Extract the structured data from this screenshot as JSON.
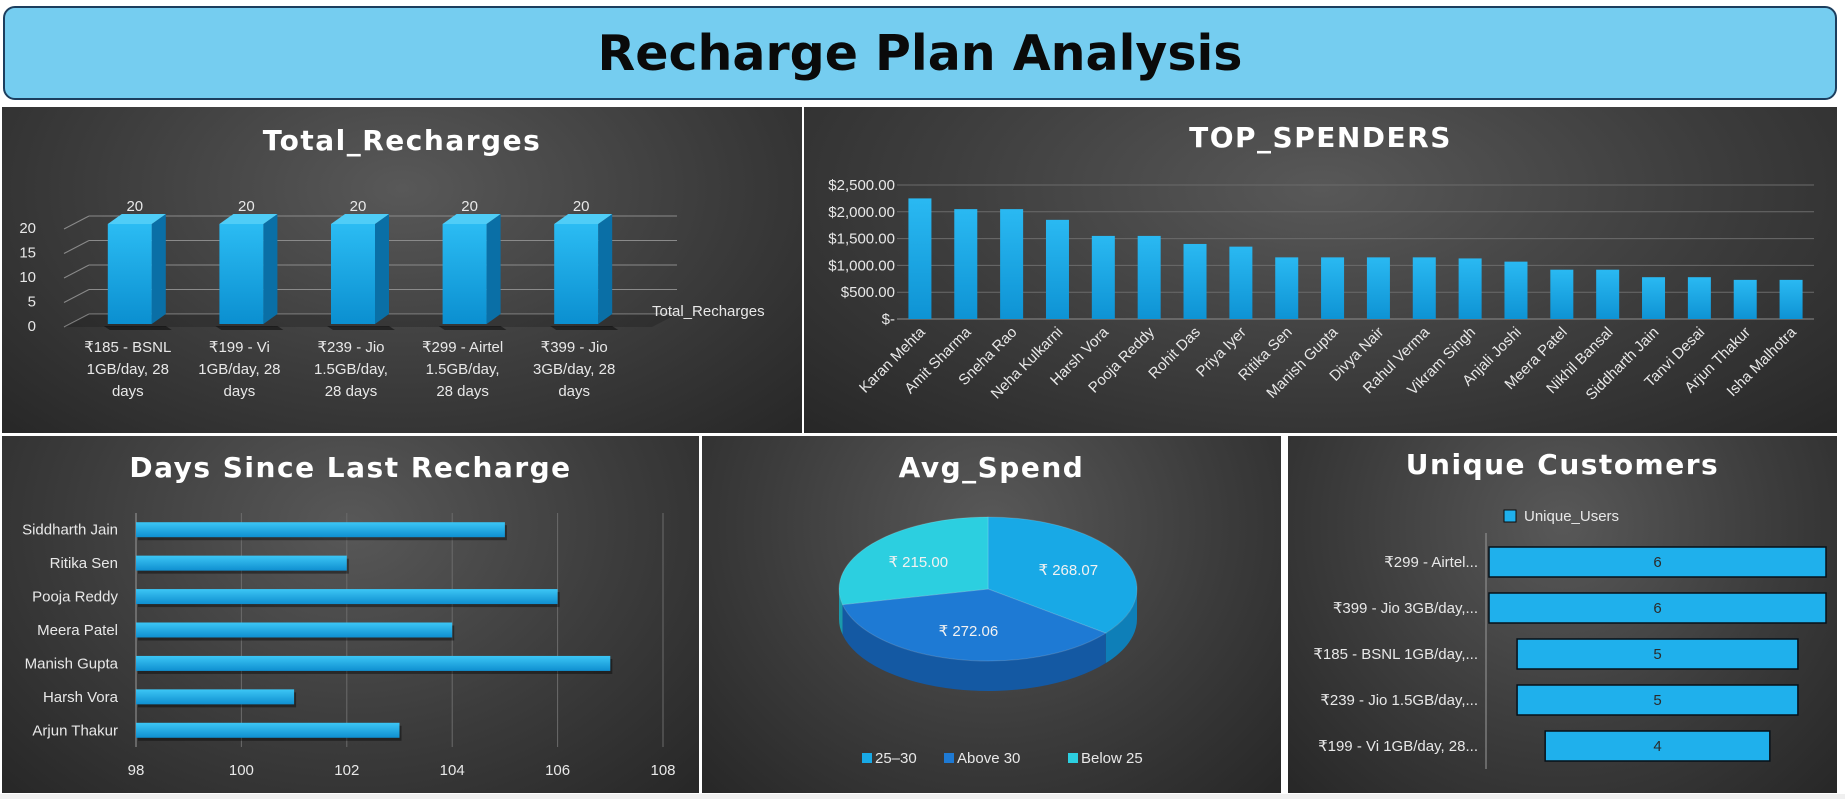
{
  "dashboard": {
    "title": "Recharge Plan Analysis"
  },
  "colors": {
    "bar": "#1fb0ec",
    "bar_dark": "#0a78b0",
    "grid": "#6b6b6b",
    "label": "#e8e8e8",
    "pie_1": "#18a9e6",
    "pie_2": "#1e7ad4",
    "pie_3": "#2ccfe0"
  },
  "chart_data": [
    {
      "type": "bar",
      "title": "Total_Recharges",
      "categories": [
        "₹185 - BSNL 1GB/day, 28 days",
        "₹199 - Vi 1GB/day, 28 days",
        "₹239 - Jio 1.5GB/day, 28 days",
        "₹299 - Airtel 1.5GB/day, 28 days",
        "₹399 - Jio 3GB/day, 28 days"
      ],
      "category_lines": [
        [
          "₹185 - BSNL",
          "1GB/day, 28",
          "days"
        ],
        [
          "₹199 - Vi",
          "1GB/day, 28",
          "days"
        ],
        [
          "₹239 - Jio",
          "1.5GB/day,",
          "28 days"
        ],
        [
          "₹299 - Airtel",
          "1.5GB/day,",
          "28 days"
        ],
        [
          "₹399 - Jio",
          "3GB/day, 28",
          "days"
        ]
      ],
      "series": [
        {
          "name": "Total_Recharges",
          "values": [
            20,
            20,
            20,
            20,
            20
          ]
        }
      ],
      "ylim": [
        0,
        20
      ],
      "yticks": [
        "0",
        "5",
        "10",
        "15",
        "20"
      ],
      "style": "3d-column",
      "legend": "right"
    },
    {
      "type": "bar",
      "title": "TOP_SPENDERS",
      "categories": [
        "Karan Mehta",
        "Amit Sharma",
        "Sneha Rao",
        "Neha Kulkarni",
        "Harsh Vora",
        "Pooja Reddy",
        "Rohit Das",
        "Priya Iyer",
        "Ritika Sen",
        "Manish Gupta",
        "Divya Nair",
        "Rahul Verma",
        "Vikram Singh",
        "Anjali Joshi",
        "Meera Patel",
        "Nikhil Bansal",
        "Siddharth Jain",
        "Tanvi Desai",
        "Arjun Thakur",
        "Isha Malhotra"
      ],
      "values": [
        2250,
        2050,
        2050,
        1850,
        1550,
        1550,
        1400,
        1350,
        1150,
        1150,
        1150,
        1150,
        1130,
        1070,
        920,
        920,
        780,
        780,
        730,
        730
      ],
      "ylim": [
        0,
        2500
      ],
      "yticks": [
        "$-",
        "$500.00",
        "$1,000.00",
        "$1,500.00",
        "$2,000.00",
        "$2,500.00"
      ],
      "grid": true
    },
    {
      "type": "bar",
      "orientation": "horizontal",
      "title": "Days Since Last Recharge",
      "categories": [
        "Siddharth Jain",
        "Ritika Sen",
        "Pooja Reddy",
        "Meera Patel",
        "Manish Gupta",
        "Harsh Vora",
        "Arjun Thakur"
      ],
      "values": [
        105,
        102,
        106,
        104,
        107,
        101,
        103
      ],
      "xlim": [
        98,
        108
      ],
      "xticks": [
        "98",
        "100",
        "102",
        "104",
        "106",
        "108"
      ],
      "grid": true
    },
    {
      "type": "pie",
      "title": "Avg_Spend",
      "style": "3d",
      "slices": [
        {
          "label": "25–30",
          "value": 268.07,
          "value_label": "₹ 268.07"
        },
        {
          "label": "Above 30",
          "value": 272.06,
          "value_label": "₹ 272.06"
        },
        {
          "label": "Below 25",
          "value": 215.0,
          "value_label": "₹ 215.00"
        }
      ],
      "legend": "bottom"
    },
    {
      "type": "bar",
      "orientation": "horizontal",
      "title": "Unique Customers",
      "categories": [
        "₹299 - Airtel...",
        "₹399 - Jio 3GB/day,...",
        "₹185 - BSNL 1GB/day,...",
        "₹239 - Jio 1.5GB/day,...",
        "₹199 - Vi 1GB/day, 28..."
      ],
      "series": [
        {
          "name": "Unique_Users",
          "values": [
            6,
            6,
            5,
            5,
            4
          ]
        }
      ],
      "value_labels": [
        "6",
        "6",
        "5",
        "5",
        "4"
      ],
      "style": "centered-funnel",
      "legend": "top"
    }
  ]
}
